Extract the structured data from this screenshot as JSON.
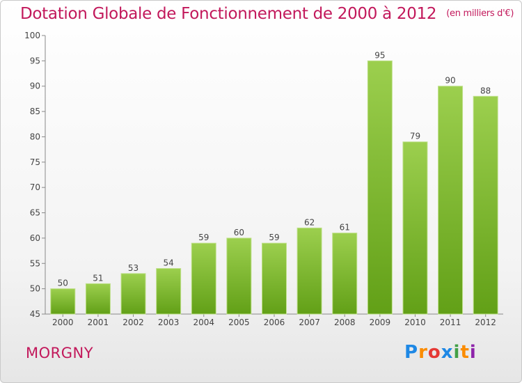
{
  "header": {
    "title": "Dotation Globale de Fonctionnement de 2000 à 2012",
    "subtitle": "(en milliers d'€)"
  },
  "footer": {
    "city": "MORGNY",
    "logo": {
      "text": "Proxiti",
      "letters": [
        "P",
        "r",
        "o",
        "x",
        "i",
        "t",
        "i"
      ],
      "colors": [
        "#1e88e5",
        "#fb8c00",
        "#e53935",
        "#1e88e5",
        "#43a047",
        "#fb8c00",
        "#8e24aa"
      ]
    }
  },
  "colors": {
    "title": "#c2185b",
    "bar_top": "#9ccf4e",
    "bar_bottom": "#62a017",
    "axis": "#888888"
  },
  "chart_data": {
    "type": "bar",
    "title": "Dotation Globale de Fonctionnement de 2000 à 2012",
    "subtitle": "(en milliers d'€)",
    "categories": [
      "2000",
      "2001",
      "2002",
      "2003",
      "2004",
      "2005",
      "2006",
      "2007",
      "2008",
      "2009",
      "2010",
      "2011",
      "2012"
    ],
    "values": [
      50,
      51,
      53,
      54,
      59,
      60,
      59,
      62,
      61,
      95,
      79,
      90,
      88
    ],
    "ylim": [
      45,
      100
    ],
    "yticks": [
      45,
      50,
      55,
      60,
      65,
      70,
      75,
      80,
      85,
      90,
      95,
      100
    ],
    "xlabel": "",
    "ylabel": "",
    "grid": false,
    "data_labels": true
  }
}
